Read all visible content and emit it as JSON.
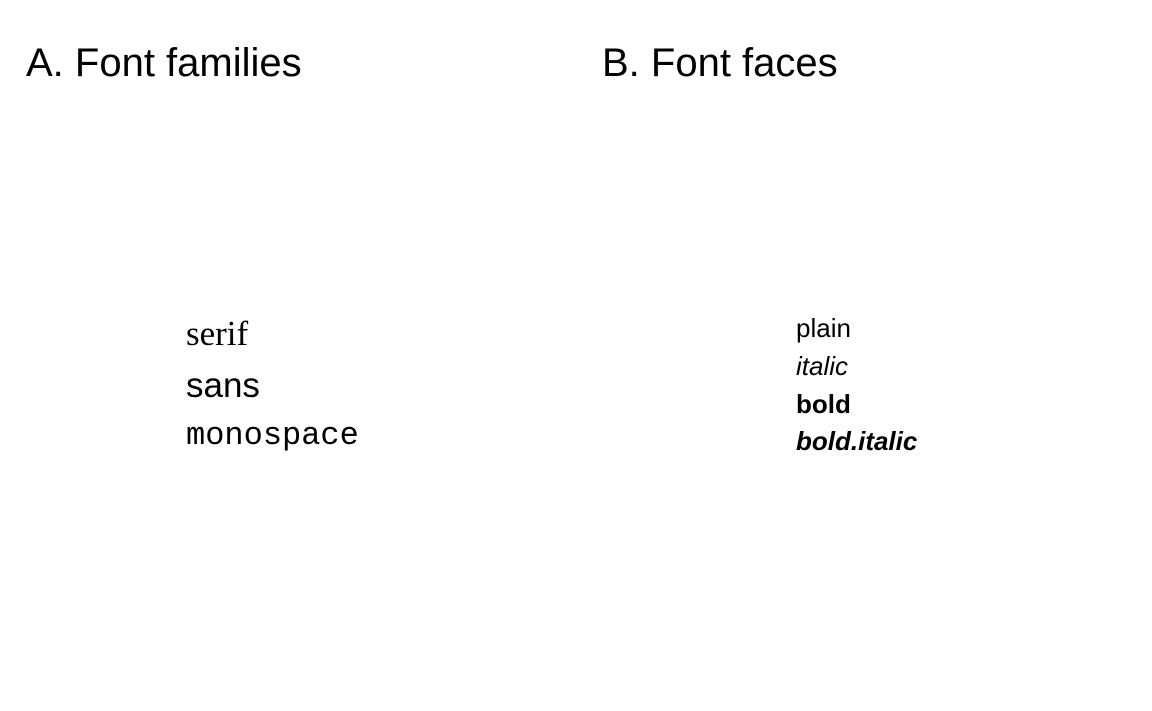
{
  "panel_a": {
    "title": "A. Font families",
    "samples": [
      "serif",
      "sans",
      "monospace"
    ]
  },
  "panel_b": {
    "title": "B. Font faces",
    "samples": [
      "plain",
      "italic",
      "bold",
      "bold.italic"
    ]
  },
  "colors": {
    "background": "#ffffff",
    "text": "#000000"
  }
}
